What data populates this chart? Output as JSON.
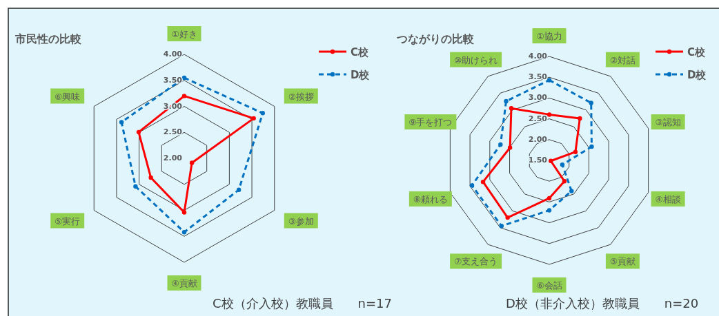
{
  "chart_data": [
    {
      "type": "radar",
      "title": "市民性の比較",
      "categories": [
        "①好き",
        "②挨拶",
        "③参加",
        "④貢献",
        "⑤実行",
        "⑥興味"
      ],
      "ylim": [
        2,
        4
      ],
      "yticks": [
        {
          "value": 2,
          "label": "2.00"
        },
        {
          "value": 2.5,
          "label": "2.50"
        },
        {
          "value": 3,
          "label": "3.00"
        },
        {
          "value": 3.5,
          "label": "3.50"
        },
        {
          "value": 4,
          "label": "4.00"
        }
      ],
      "grid": true,
      "legend": "top right",
      "marker": "circle",
      "series": [
        {
          "name": "C校",
          "color": "#ff0000",
          "line_style": "solid",
          "values": [
            3.2,
            3.54,
            2.17,
            3.04,
            2.74,
            3.01
          ]
        },
        {
          "name": "D校",
          "color": "#0070c0",
          "line_style": "dashed",
          "values": [
            3.55,
            3.74,
            3.21,
            3.42,
            3.08,
            3.39
          ]
        }
      ],
      "annotations": [
        "C校（介入校）教職員　　n=17"
      ]
    },
    {
      "type": "radar",
      "title": "つながりの比較",
      "categories": [
        "①協力",
        "②対話",
        "③認知",
        "④相談",
        "⑤貢献",
        "⑥会話",
        "⑦支え合う",
        "⑧頼れる",
        "⑨手を打つ",
        "⑩助けられ"
      ],
      "ylim": [
        1.5,
        4
      ],
      "yticks": [
        {
          "value": 1.5,
          "label": "1.50"
        },
        {
          "value": 2,
          "label": "2.00"
        },
        {
          "value": 2.5,
          "label": "2.50"
        },
        {
          "value": 3,
          "label": "3.00"
        },
        {
          "value": 3.5,
          "label": "3.50"
        },
        {
          "value": 4,
          "label": "4.00"
        }
      ],
      "grid": true,
      "legend": "top right",
      "marker": "circle",
      "series": [
        {
          "name": "C校",
          "color": "#ff0000",
          "line_style": "solid",
          "values": [
            2.6,
            2.75,
            2.16,
            1.54,
            2.12,
            2.41,
            3.2,
            3.17,
            2.49,
            3.05
          ]
        },
        {
          "name": "D校",
          "color": "#0070c0",
          "line_style": "dashed",
          "values": [
            3.43,
            3.21,
            2.57,
            1.83,
            2.41,
            2.7,
            3.45,
            3.45,
            2.73,
            3.26
          ]
        }
      ],
      "annotations": [
        "D校（非介入校）教職員　　n=20"
      ]
    }
  ]
}
